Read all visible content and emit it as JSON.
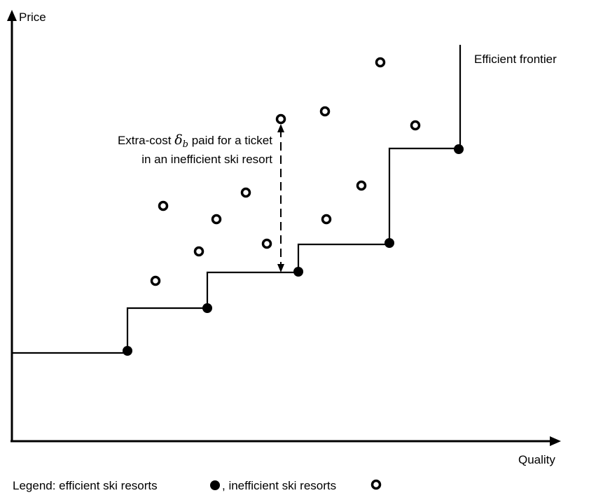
{
  "axes": {
    "y_label": "Price",
    "x_label": "Quality"
  },
  "annotation": {
    "line1_prefix": "Extra-cost ",
    "line1_symbol": "δ",
    "line1_subscript": "b",
    "line1_suffix": " paid for a ticket",
    "line2": "in an inefficient ski resort"
  },
  "frontier_label": "Efficient frontier",
  "legend": {
    "prefix": "Legend: efficient ski resorts",
    "separator": ", inefficient ski resorts"
  },
  "colors": {
    "ink": "#000000",
    "background": "#ffffff"
  }
}
